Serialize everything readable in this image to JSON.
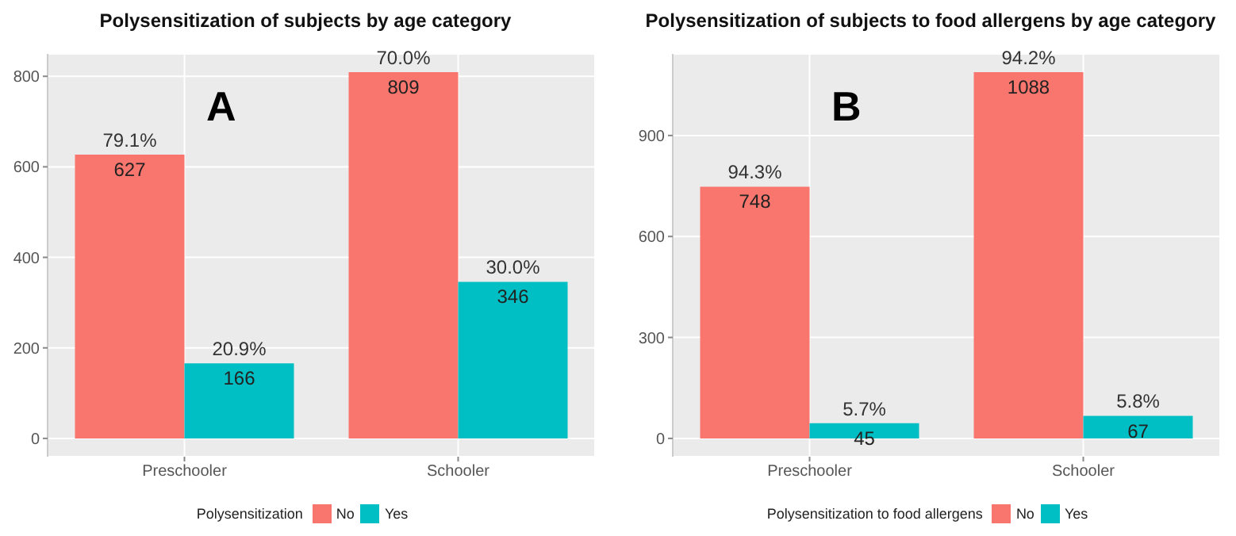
{
  "chart_data": [
    {
      "type": "bar",
      "title": "Polysensitization of subjects by age category",
      "annotations": [
        "A",
        {
          "text": "79.1%",
          "x": "Preschooler",
          "y": 627
        },
        {
          "text": "70.0%",
          "x": "Schooler",
          "y": 809
        },
        {
          "text": "20.9%",
          "x": "Preschooler",
          "y": 166
        },
        {
          "text": "30.0%",
          "x": "Schooler",
          "y": 346
        }
      ],
      "categories": [
        "Preschooler",
        "Schooler"
      ],
      "legend_title": "Polysensitization",
      "series": [
        {
          "name": "No",
          "color": "#f8766d",
          "values": [
            627,
            809
          ]
        },
        {
          "name": "Yes",
          "color": "#00bfc4",
          "values": [
            166,
            346
          ]
        }
      ],
      "data_labels": true,
      "ylim": [
        -40.45,
        849.45
      ],
      "yticks": [
        0,
        200,
        400,
        600,
        800
      ],
      "grid": true,
      "legend": "bottom"
    },
    {
      "type": "bar",
      "title": "Polysensitization of subjects to food allergens by age category",
      "annotations": [
        "B",
        {
          "text": "94.3%",
          "x": "Preschooler",
          "y": 748
        },
        {
          "text": "94.2%",
          "x": "Schooler",
          "y": 1088
        },
        {
          "text": "5.7%",
          "x": "Preschooler",
          "y": 45
        },
        {
          "text": "5.8%",
          "x": "Schooler",
          "y": 67
        }
      ],
      "categories": [
        "Preschooler",
        "Schooler"
      ],
      "legend_title": "Polysensitization to food allergens",
      "series": [
        {
          "name": "No",
          "color": "#f8766d",
          "values": [
            748,
            1088
          ]
        },
        {
          "name": "Yes",
          "color": "#00bfc4",
          "values": [
            45,
            67
          ]
        }
      ],
      "data_labels": true,
      "ylim": [
        -54.4,
        1142.4
      ],
      "yticks": [
        0,
        300,
        600,
        900
      ],
      "grid": true,
      "legend": "bottom"
    }
  ]
}
